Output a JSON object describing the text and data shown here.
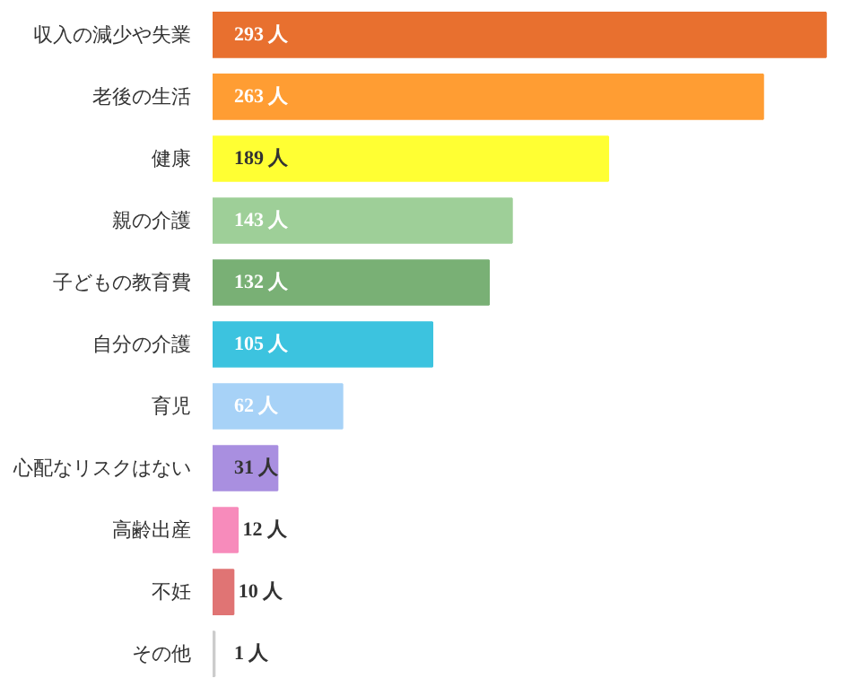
{
  "chart_data": {
    "type": "bar",
    "orientation": "horizontal",
    "categories": [
      "収入の減少や失業",
      "老後の生活",
      "健康",
      "親の介護",
      "子どもの教育費",
      "自分の介護",
      "育児",
      "心配なリスクはない",
      "高齢出産",
      "不妊",
      "その他"
    ],
    "values": [
      293,
      263,
      189,
      143,
      132,
      105,
      62,
      31,
      12,
      10,
      1
    ],
    "colors": [
      "#e8702f",
      "#ff9d33",
      "#ffff33",
      "#9ecf98",
      "#79b075",
      "#3cc3df",
      "#a7d2f7",
      "#a98fe0",
      "#f78bbb",
      "#e07474",
      "#cccccc"
    ],
    "value_labels": [
      "293 人",
      "263 人",
      "189 人",
      "143 人",
      "132 人",
      "105 人",
      "62 人",
      "31 人",
      "12 人",
      "10 人",
      "1 人"
    ],
    "grid": false
  }
}
